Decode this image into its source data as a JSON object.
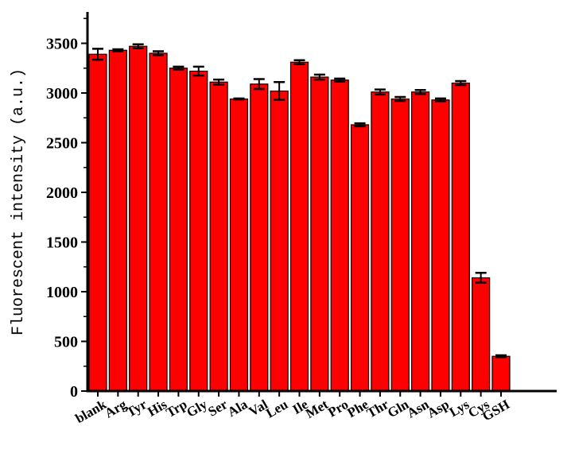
{
  "chart_data": {
    "type": "bar",
    "title": "",
    "xlabel": "",
    "ylabel": "Fluorescent intensity (a.u.)",
    "ylim": [
      0,
      3800
    ],
    "yticks": [
      0,
      500,
      1000,
      1500,
      2000,
      2500,
      3000,
      3500
    ],
    "grid": false,
    "bar_color": "#ff0000",
    "categories": [
      "blank",
      "Arg",
      "Tyr",
      "His",
      "Trp",
      "Gly",
      "Ser",
      "Ala",
      "Val",
      "Leu",
      "Ile",
      "Met",
      "Pro",
      "Phe",
      "Thr",
      "Gln",
      "Asn",
      "Asp",
      "Lys",
      "Cys",
      "GSH"
    ],
    "values": [
      3390,
      3430,
      3470,
      3400,
      3250,
      3220,
      3110,
      2940,
      3090,
      3020,
      3310,
      3160,
      3130,
      2680,
      3010,
      2940,
      3010,
      2930,
      3100,
      1140,
      350
    ],
    "errors": [
      55,
      10,
      20,
      20,
      15,
      45,
      25,
      5,
      50,
      90,
      20,
      25,
      15,
      15,
      25,
      20,
      20,
      15,
      20,
      50,
      10
    ]
  }
}
